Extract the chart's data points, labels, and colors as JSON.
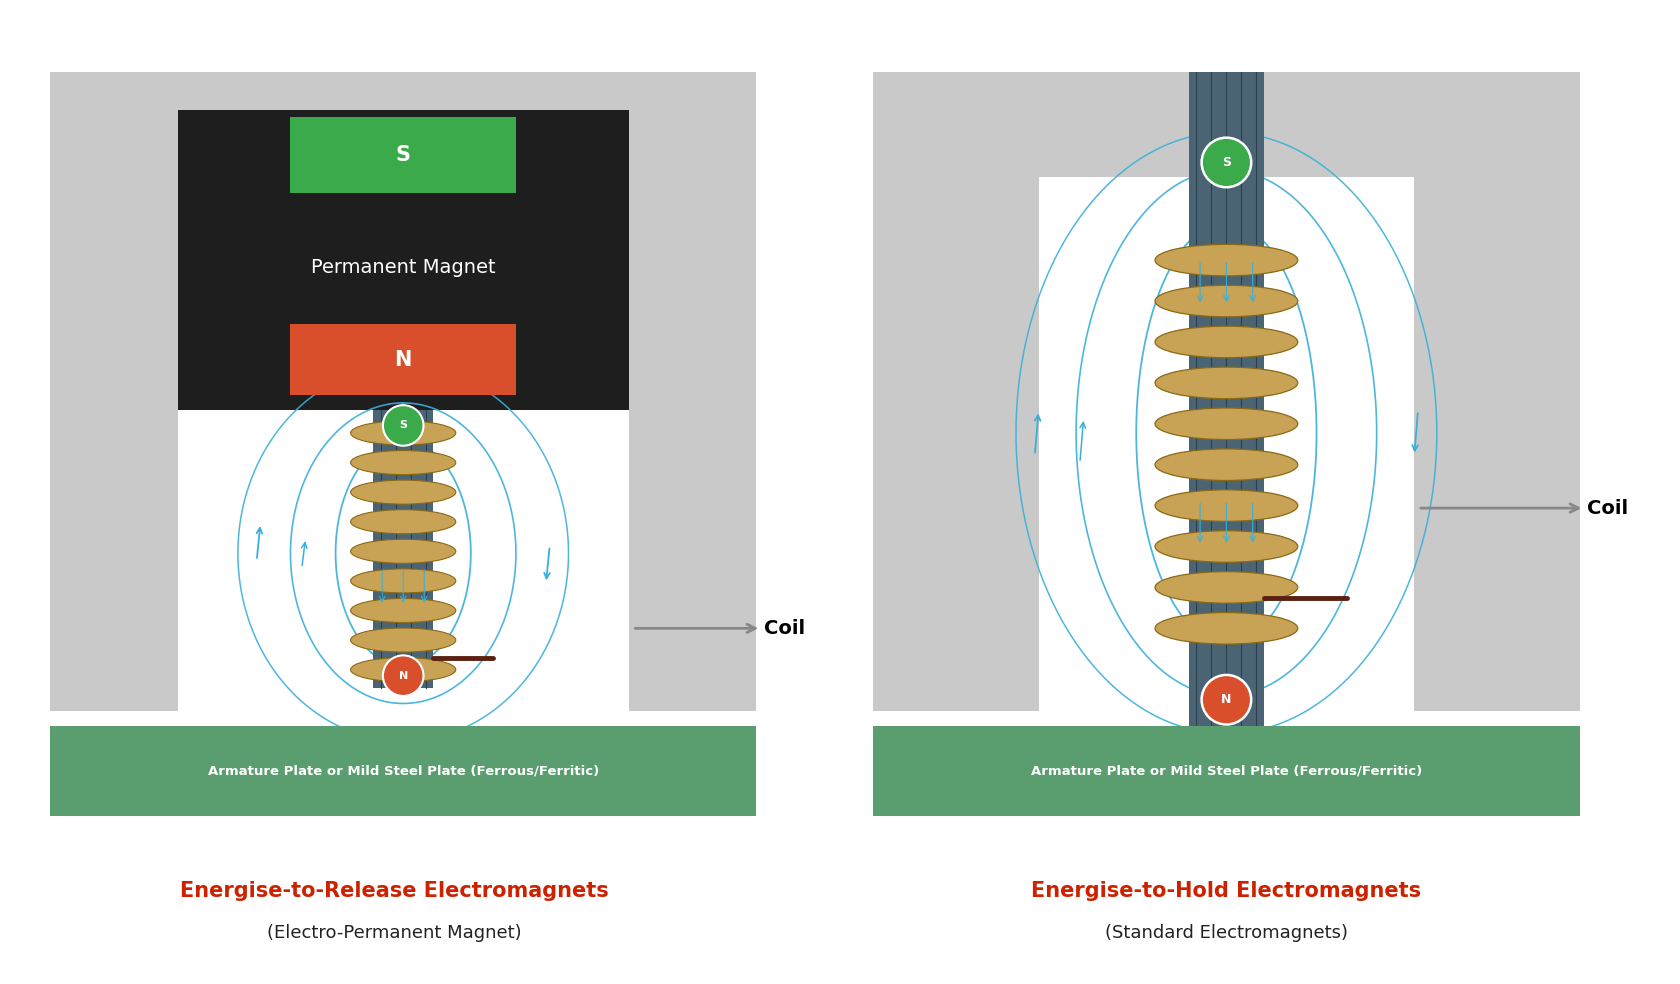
{
  "bg_color": "#ffffff",
  "gray_color": "#c9c9c9",
  "dark_gray": "#1e1e1e",
  "green_color": "#5a9e6f",
  "red_color": "#d94f2b",
  "blue_field": "#3ab0d8",
  "coil_color_light": "#c8a255",
  "coil_color_dark": "#8B6914",
  "core_color": "#4a6474",
  "core_stripe": "#2a4050",
  "title1_red": "#cc2200",
  "title1_line1": "Energise-to-Release Electromagnets",
  "title1_line2": "(Electro-Permanent Magnet)",
  "title2_line1": "Energise-to-Hold Electromagnets",
  "title2_line2": "(Standard Electromagnets)",
  "plate_text": "Armature Plate or Mild Steel Plate (Ferrous/Ferritic)",
  "coil_label": "Coil",
  "perm_magnet_label": "Permanent Magnet",
  "s_label": "S",
  "n_label": "N",
  "green_pole": "#3aaa4a",
  "wire_end": "#5a2010"
}
